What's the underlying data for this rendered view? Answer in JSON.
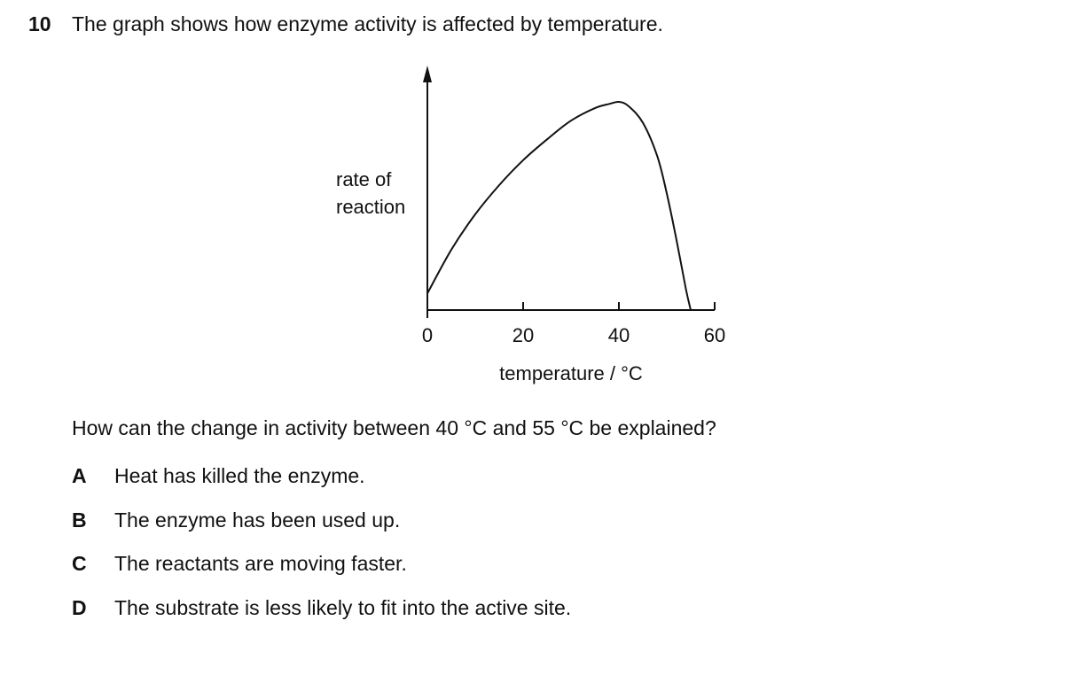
{
  "question": {
    "number": "10",
    "intro": "The graph shows how enzyme activity is affected by temperature.",
    "prompt": "How can the change in activity between 40 °C and 55 °C be explained?",
    "options": [
      {
        "letter": "A",
        "text": "Heat has killed the enzyme."
      },
      {
        "letter": "B",
        "text": "The enzyme has been used up."
      },
      {
        "letter": "C",
        "text": "The reactants are moving faster."
      },
      {
        "letter": "D",
        "text": "The substrate is less likely to fit into the active site."
      }
    ]
  },
  "chart_data": {
    "type": "line",
    "xlabel": "temperature / °C",
    "ylabel_lines": [
      "rate of",
      "reaction"
    ],
    "x_ticks": [
      0,
      20,
      40,
      60
    ],
    "xlim": [
      0,
      60
    ],
    "ylim": [
      0,
      1
    ],
    "y_values_relative": true,
    "series": [
      {
        "x": [
          0,
          5,
          10,
          15,
          20,
          25,
          30,
          35,
          38,
          40,
          42,
          45,
          48,
          50,
          52,
          54,
          55
        ],
        "y": [
          0.08,
          0.29,
          0.46,
          0.6,
          0.72,
          0.82,
          0.91,
          0.97,
          0.99,
          1.0,
          0.98,
          0.9,
          0.74,
          0.56,
          0.34,
          0.1,
          0.0
        ]
      }
    ]
  }
}
